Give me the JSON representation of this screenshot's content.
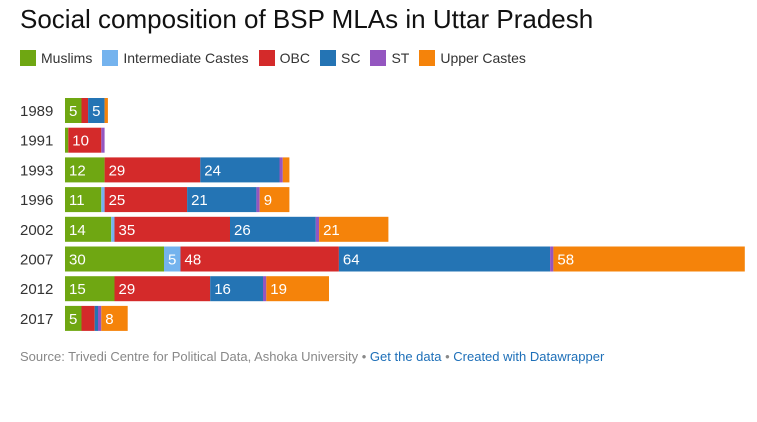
{
  "chart_data": {
    "type": "bar",
    "orientation": "horizontal",
    "stacked": true,
    "title": "Social composition of BSP MLAs in Uttar Pradesh",
    "categories": [
      "1989",
      "1991",
      "1993",
      "1996",
      "2002",
      "2007",
      "2012",
      "2017"
    ],
    "series": [
      {
        "name": "Muslims",
        "color": "#6fa712",
        "values": [
          5,
          1,
          12,
          11,
          14,
          30,
          15,
          5
        ]
      },
      {
        "name": "Intermediate Castes",
        "color": "#74b3ee",
        "values": [
          0,
          0,
          0,
          1,
          1,
          5,
          0,
          0
        ]
      },
      {
        "name": "OBC",
        "color": "#d42a2a",
        "values": [
          2,
          10,
          29,
          25,
          35,
          48,
          29,
          4
        ]
      },
      {
        "name": "SC",
        "color": "#2474b4",
        "values": [
          5,
          0,
          24,
          21,
          26,
          64,
          16,
          1
        ]
      },
      {
        "name": "ST",
        "color": "#9456c0",
        "values": [
          0,
          1,
          1,
          1,
          1,
          1,
          1,
          1
        ]
      },
      {
        "name": "Upper Castes",
        "color": "#f5830a",
        "values": [
          1,
          0,
          2,
          9,
          21,
          58,
          19,
          8
        ]
      }
    ],
    "label_min": 5,
    "legend": "top-left",
    "grid": false
  },
  "footer": {
    "source": "Source: Trivedi Centre for Political Data, Ashoka University",
    "sep": " • ",
    "get_data": "Get the data",
    "created": "Created with Datawrapper"
  }
}
